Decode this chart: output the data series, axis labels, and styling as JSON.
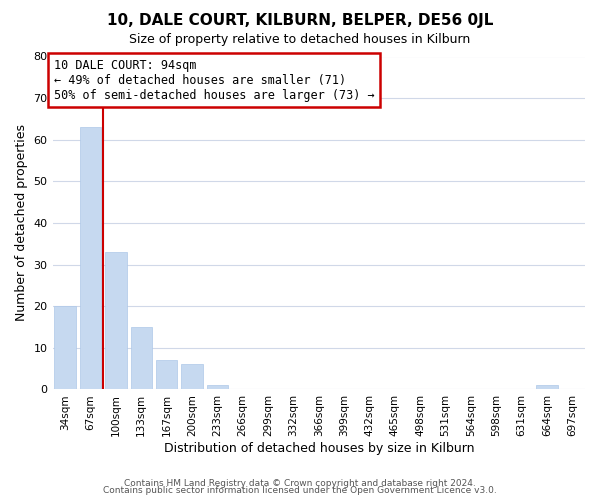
{
  "title": "10, DALE COURT, KILBURN, BELPER, DE56 0JL",
  "subtitle": "Size of property relative to detached houses in Kilburn",
  "xlabel": "Distribution of detached houses by size in Kilburn",
  "ylabel": "Number of detached properties",
  "bar_labels": [
    "34sqm",
    "67sqm",
    "100sqm",
    "133sqm",
    "167sqm",
    "200sqm",
    "233sqm",
    "266sqm",
    "299sqm",
    "332sqm",
    "366sqm",
    "399sqm",
    "432sqm",
    "465sqm",
    "498sqm",
    "531sqm",
    "564sqm",
    "598sqm",
    "631sqm",
    "664sqm",
    "697sqm"
  ],
  "bar_values": [
    20,
    63,
    33,
    15,
    7,
    6,
    1,
    0,
    0,
    0,
    0,
    0,
    0,
    0,
    0,
    0,
    0,
    0,
    0,
    1,
    0
  ],
  "bar_color": "#c6d9f0",
  "bar_edge_color": "#aec8e8",
  "vline_x": 1.5,
  "vline_color": "#cc0000",
  "annotation_title": "10 DALE COURT: 94sqm",
  "annotation_line1": "← 49% of detached houses are smaller (71)",
  "annotation_line2": "50% of semi-detached houses are larger (73) →",
  "annotation_box_color": "#ffffff",
  "annotation_box_edge": "#cc0000",
  "ylim": [
    0,
    80
  ],
  "yticks": [
    0,
    10,
    20,
    30,
    40,
    50,
    60,
    70,
    80
  ],
  "footer1": "Contains HM Land Registry data © Crown copyright and database right 2024.",
  "footer2": "Contains public sector information licensed under the Open Government Licence v3.0.",
  "background_color": "#ffffff",
  "grid_color": "#d0d8e8"
}
